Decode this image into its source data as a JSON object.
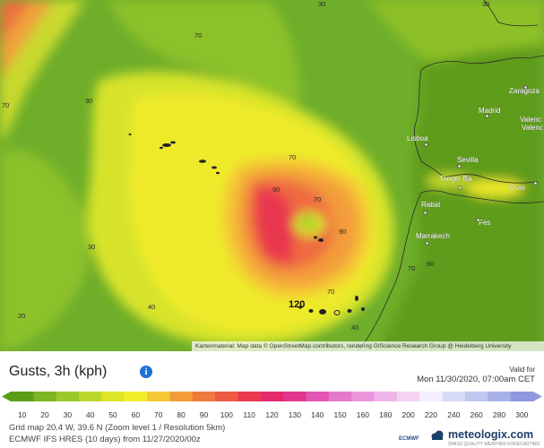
{
  "map": {
    "isobar_labels": [
      "10",
      "20",
      "30",
      "30",
      "30",
      "30",
      "40",
      "40",
      "70",
      "70",
      "70",
      "70",
      "70",
      "90",
      "90",
      "70",
      "90",
      "120"
    ],
    "cities": [
      "Zaragoza",
      "Madrid",
      "Valenc",
      "Valenc",
      "Lisboa",
      "Sevilla",
      "Tanger Ba",
      "Oran",
      "Rabat",
      "Fes",
      "Marrakech"
    ],
    "attribution": "Kartenmaterial: Map data © OpenStreetMap contributors, rendering GIScience Research Group @ Heidelberg University"
  },
  "panel": {
    "title": "Gusts, 3h (kph)",
    "info_icon": "info-icon",
    "valid_label": "Valid for",
    "valid_date": "Mon 11/30/2020, 07:00am CET",
    "scale_values": [
      "10",
      "20",
      "30",
      "40",
      "50",
      "60",
      "70",
      "80",
      "90",
      "100",
      "110",
      "120",
      "130",
      "140",
      "150",
      "160",
      "180",
      "200",
      "220",
      "240",
      "260",
      "280",
      "300"
    ],
    "scale_colors": [
      "#5a9e18",
      "#7cb521",
      "#9cc92a",
      "#bcd82d",
      "#dfe629",
      "#f3ee2a",
      "#f6c836",
      "#f39d3a",
      "#ef7a3e",
      "#ee5a44",
      "#e9394d",
      "#e42a6d",
      "#e1358f",
      "#e255b2",
      "#e579cc",
      "#ea97dd",
      "#efb5ea",
      "#f5d3f3",
      "#f4f0ff",
      "#d7dcf7",
      "#c0c7f0",
      "#a7b0e8",
      "#8e99e0"
    ],
    "grid_info": "Grid map 20.4 W, 39.6 N (Zoom level 1 / Resolution 5km)",
    "model_info": "ECMWF IFS HRES (10 days) from 11/27/2020/00z",
    "logo_text": "meteologix.com",
    "logo_sub": "SWISS QUALITY WEATHER FORECASTING",
    "ecmwf_logo": "ECMWF"
  }
}
